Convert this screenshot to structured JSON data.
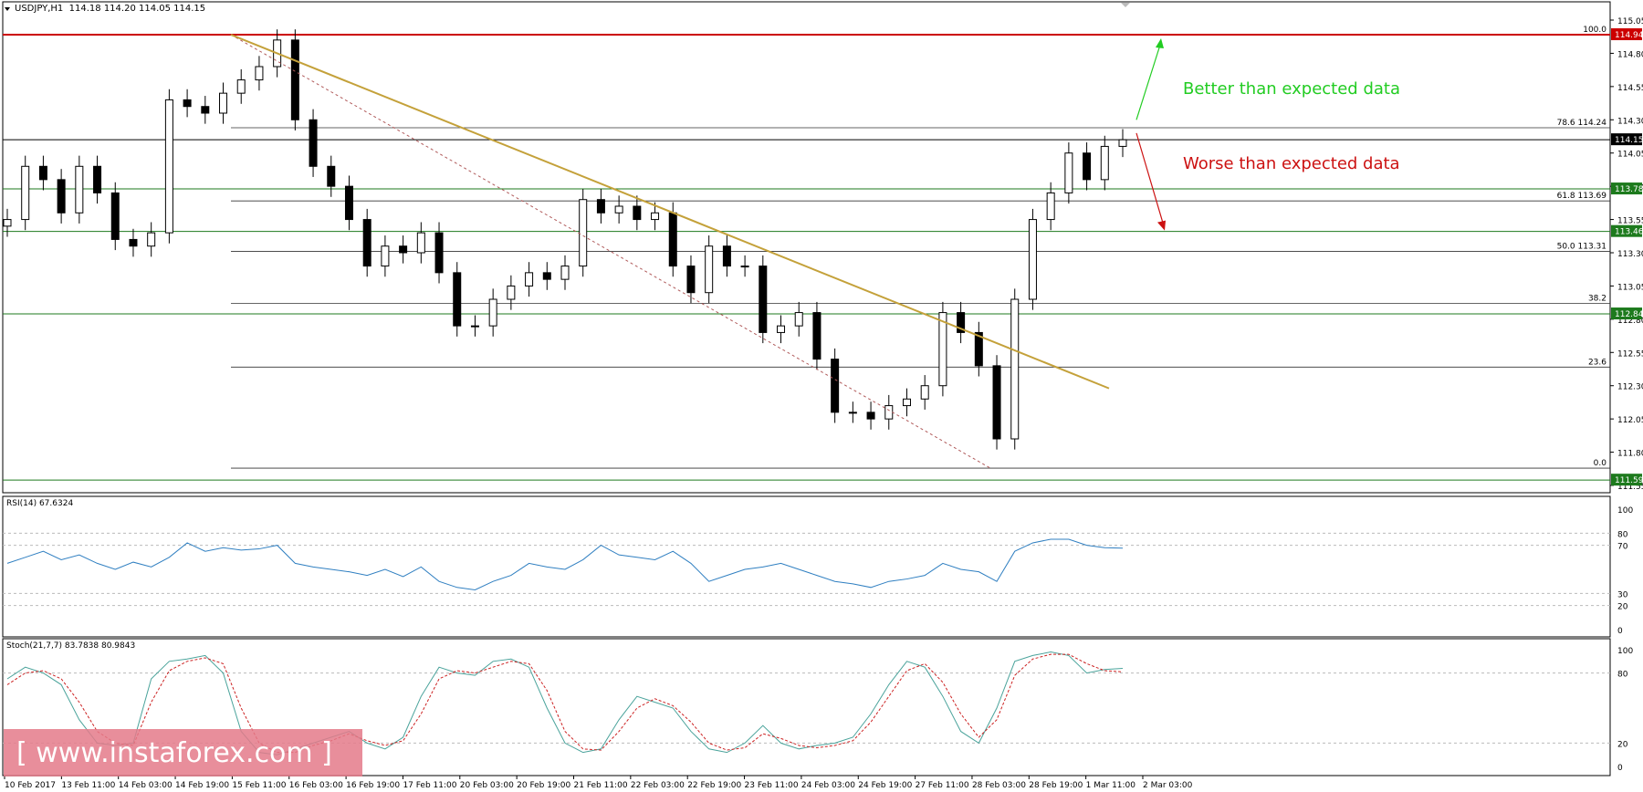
{
  "header": {
    "main": "USDJPY,H1  114.18 114.20 114.05 114.15",
    "rsi": "RSI(14) 67.6324",
    "stoch": "Stoch(21,7,7) 83.7838 80.9843"
  },
  "watermark": "[ www.instaforex.com ]",
  "annotations": {
    "better": "Better than expected data",
    "worse": "Worse than expected data",
    "better_color": "#22cc22",
    "worse_color": "#cc1111"
  },
  "chart_data": {
    "type": "candlestick",
    "symbol": "USDJPY",
    "timeframe": "H1",
    "ohlc_current": {
      "open": 114.18,
      "high": 114.2,
      "low": 114.05,
      "close": 114.15
    },
    "ylim": [
      111.55,
      115.05
    ],
    "price_ticks": [
      "115.05",
      "114.80",
      "114.55",
      "114.30",
      "114.05",
      "113.80",
      "113.55",
      "113.30",
      "113.05",
      "112.80",
      "112.55",
      "112.30",
      "112.05",
      "111.80",
      "111.55"
    ],
    "x_ticks": [
      "10 Feb 2017",
      "13 Feb 11:00",
      "14 Feb 03:00",
      "14 Feb 19:00",
      "15 Feb 11:00",
      "16 Feb 03:00",
      "16 Feb 19:00",
      "17 Feb 11:00",
      "20 Feb 03:00",
      "20 Feb 19:00",
      "21 Feb 11:00",
      "22 Feb 03:00",
      "22 Feb 19:00",
      "23 Feb 11:00",
      "24 Feb 03:00",
      "24 Feb 19:00",
      "27 Feb 11:00",
      "28 Feb 03:00",
      "28 Feb 19:00",
      "1 Mar 11:00",
      "2 Mar 03:00"
    ],
    "closes": [
      113.55,
      113.95,
      113.85,
      113.6,
      113.95,
      113.75,
      113.4,
      113.35,
      113.45,
      114.45,
      114.4,
      114.35,
      114.5,
      114.6,
      114.7,
      114.9,
      114.3,
      113.95,
      113.8,
      113.55,
      113.2,
      113.35,
      113.3,
      113.45,
      113.15,
      112.75,
      112.75,
      112.95,
      113.05,
      113.15,
      113.1,
      113.2,
      113.7,
      113.6,
      113.65,
      113.55,
      113.6,
      113.2,
      113.0,
      113.35,
      113.2,
      113.2,
      112.7,
      112.75,
      112.85,
      112.5,
      112.1,
      112.1,
      112.05,
      112.15,
      112.2,
      112.3,
      112.85,
      112.7,
      112.45,
      111.9,
      112.95,
      113.55,
      113.75,
      114.05,
      113.85,
      114.1,
      114.15
    ],
    "levels": [
      {
        "price": 114.94,
        "label": "114.94",
        "color": "#cc0000"
      },
      {
        "price": 114.15,
        "label": "114.15",
        "color": "#000000"
      },
      {
        "price": 113.78,
        "label": "113.78",
        "color": "#1d7a1d"
      },
      {
        "price": 113.46,
        "label": "113.46",
        "color": "#1d7a1d"
      },
      {
        "price": 112.84,
        "label": "112.84",
        "color": "#1d7a1d"
      },
      {
        "price": 111.59,
        "label": "111.59",
        "color": "#1d7a1d"
      }
    ],
    "fibonacci": [
      {
        "price": 114.94,
        "label": "100.0"
      },
      {
        "price": 114.24,
        "label": "78.6 114.24"
      },
      {
        "price": 113.69,
        "label": "61.8 113.69"
      },
      {
        "price": 113.31,
        "label": "50.0 113.31"
      },
      {
        "price": 112.92,
        "label": "38.2"
      },
      {
        "price": 112.44,
        "label": "23.6"
      },
      {
        "price": 111.68,
        "label": "0.0"
      }
    ],
    "trendline": {
      "from": [
        114.94
      ],
      "to": [
        112.28
      ],
      "color": "#c4a13a"
    },
    "rsi": {
      "label": "RSI(14) 67.6324",
      "ticks": [
        "100",
        "80",
        "70",
        "30",
        "20",
        "0"
      ],
      "values": [
        55,
        60,
        65,
        58,
        62,
        55,
        50,
        56,
        52,
        60,
        72,
        65,
        68,
        66,
        67,
        70,
        55,
        52,
        50,
        48,
        45,
        50,
        44,
        52,
        40,
        35,
        33,
        40,
        45,
        55,
        52,
        50,
        58,
        70,
        62,
        60,
        58,
        65,
        55,
        40,
        45,
        50,
        52,
        55,
        50,
        45,
        40,
        38,
        35,
        40,
        42,
        45,
        55,
        50,
        48,
        40,
        65,
        72,
        75,
        75,
        70,
        68,
        67.6
      ]
    },
    "stoch": {
      "label": "Stoch(21,7,7) 83.7838 80.9843",
      "ticks": [
        "100",
        "80",
        "20",
        "0"
      ],
      "main": [
        75,
        85,
        80,
        70,
        40,
        20,
        18,
        20,
        75,
        90,
        92,
        95,
        80,
        30,
        12,
        10,
        15,
        20,
        25,
        30,
        20,
        15,
        25,
        60,
        85,
        80,
        78,
        90,
        92,
        85,
        50,
        20,
        12,
        15,
        40,
        60,
        55,
        50,
        30,
        15,
        12,
        20,
        35,
        20,
        15,
        18,
        20,
        25,
        45,
        70,
        90,
        85,
        60,
        30,
        20,
        50,
        90,
        95,
        98,
        95,
        80,
        83,
        84
      ],
      "signal": [
        70,
        80,
        82,
        75,
        55,
        30,
        20,
        18,
        55,
        82,
        90,
        93,
        88,
        50,
        20,
        12,
        12,
        18,
        22,
        28,
        22,
        18,
        22,
        45,
        75,
        82,
        80,
        85,
        90,
        88,
        65,
        30,
        15,
        14,
        30,
        50,
        58,
        52,
        38,
        20,
        14,
        16,
        28,
        24,
        18,
        16,
        18,
        22,
        38,
        60,
        82,
        88,
        72,
        45,
        25,
        40,
        78,
        92,
        96,
        96,
        88,
        82,
        81
      ]
    }
  }
}
